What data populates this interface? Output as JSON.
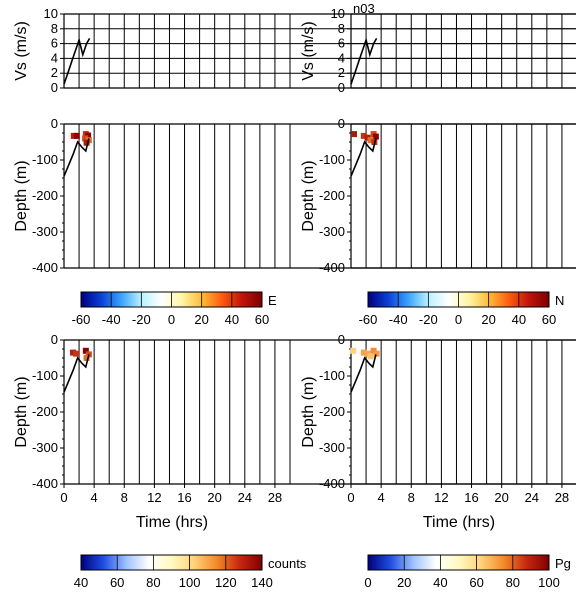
{
  "chart_data": [
    {
      "type": "line",
      "panel": "vs-left",
      "ylabel": "Vs (m/s)",
      "ylim": [
        0,
        10
      ],
      "yticks": [
        0,
        2,
        4,
        6,
        8,
        10
      ],
      "xlim": [
        0,
        30
      ],
      "grid": true,
      "series": [
        {
          "x": [
            0,
            0.5,
            1,
            1.5,
            2,
            2.5,
            3,
            3.4
          ],
          "y": [
            0.5,
            2,
            3.5,
            5,
            6.5,
            4.5,
            6,
            6.7
          ]
        }
      ]
    },
    {
      "type": "line",
      "panel": "vs-right",
      "title": "n03",
      "ylabel": "Vs (m/s)",
      "ylim": [
        0,
        10
      ],
      "yticks": [
        0,
        2,
        4,
        6,
        8,
        10
      ],
      "xlim": [
        0,
        30
      ],
      "grid": true,
      "series": [
        {
          "x": [
            0,
            0.5,
            1,
            1.5,
            2,
            2.5,
            3,
            3.4
          ],
          "y": [
            0.5,
            2,
            3.5,
            5,
            6.5,
            4.5,
            6,
            6.7
          ]
        }
      ]
    },
    {
      "type": "scatter",
      "panel": "E",
      "ylabel": "Depth (m)",
      "ylim": [
        -400,
        0
      ],
      "yticks": [
        0,
        -100,
        -200,
        -300,
        -400
      ],
      "xlim": [
        0,
        30
      ],
      "colorbar": {
        "label": "E",
        "ticks": [
          -60,
          -40,
          -20,
          0,
          20,
          40,
          60
        ]
      },
      "points": [
        {
          "x": 1.3,
          "y": -33,
          "color": "#b41e0e"
        },
        {
          "x": 1.7,
          "y": -33,
          "color": "#8b0000"
        },
        {
          "x": 2.9,
          "y": -28,
          "color": "#c83214"
        },
        {
          "x": 3.2,
          "y": -32,
          "color": "#8b0000"
        },
        {
          "x": 2.8,
          "y": -40,
          "color": "#d04a1a"
        },
        {
          "x": 3.3,
          "y": -45,
          "color": "#e07025"
        },
        {
          "x": 3.0,
          "y": -52,
          "color": "#a0200c"
        }
      ],
      "series": [
        {
          "x": [
            0,
            0.6,
            1.2,
            1.8,
            2.4,
            2.9,
            3.3
          ],
          "y": [
            -145,
            -115,
            -85,
            -50,
            -65,
            -75,
            -40
          ]
        }
      ]
    },
    {
      "type": "scatter",
      "panel": "N",
      "ylabel": "Depth (m)",
      "ylim": [
        -400,
        0
      ],
      "yticks": [
        0,
        -100,
        -200,
        -300,
        -400
      ],
      "xlim": [
        0,
        30
      ],
      "colorbar": {
        "label": "N",
        "ticks": [
          -60,
          -40,
          -20,
          0,
          20,
          40,
          60
        ]
      },
      "points": [
        {
          "x": 0.4,
          "y": -28,
          "color": "#a0200c"
        },
        {
          "x": 1.7,
          "y": -33,
          "color": "#c83214"
        },
        {
          "x": 2.2,
          "y": -38,
          "color": "#b41e0e"
        },
        {
          "x": 3.0,
          "y": -28,
          "color": "#d04a1a"
        },
        {
          "x": 3.3,
          "y": -35,
          "color": "#8b0000"
        },
        {
          "x": 2.6,
          "y": -45,
          "color": "#e07025"
        },
        {
          "x": 3.1,
          "y": -50,
          "color": "#c83214"
        }
      ],
      "series": [
        {
          "x": [
            0,
            0.6,
            1.2,
            1.8,
            2.4,
            2.9,
            3.3
          ],
          "y": [
            -145,
            -115,
            -85,
            -50,
            -65,
            -75,
            -40
          ]
        }
      ]
    },
    {
      "type": "scatter",
      "panel": "counts",
      "ylabel": "Depth (m)",
      "xlabel": "Time (hrs)",
      "ylim": [
        -400,
        0
      ],
      "yticks": [
        0,
        -100,
        -200,
        -300,
        -400
      ],
      "xlim": [
        0,
        30
      ],
      "xticks": [
        0,
        4,
        8,
        12,
        16,
        20,
        24,
        28
      ],
      "colorbar": {
        "label": "counts",
        "ticks": [
          40,
          60,
          80,
          100,
          120,
          140
        ]
      },
      "points": [
        {
          "x": 1.2,
          "y": -35,
          "color": "#b41e0e"
        },
        {
          "x": 1.6,
          "y": -38,
          "color": "#c83214"
        },
        {
          "x": 2.9,
          "y": -30,
          "color": "#8b0000"
        },
        {
          "x": 3.3,
          "y": -40,
          "color": "#d04a1a"
        },
        {
          "x": 3.0,
          "y": -50,
          "color": "#e07025"
        }
      ],
      "series": [
        {
          "x": [
            0,
            0.6,
            1.2,
            1.8,
            2.4,
            2.9,
            3.3
          ],
          "y": [
            -145,
            -115,
            -85,
            -50,
            -65,
            -75,
            -40
          ]
        }
      ]
    },
    {
      "type": "scatter",
      "panel": "Pg",
      "ylabel": "Depth (m)",
      "xlabel": "Time (hrs)",
      "ylim": [
        -400,
        0
      ],
      "yticks": [
        0,
        -100,
        -200,
        -300,
        -400
      ],
      "xlim": [
        0,
        30
      ],
      "xticks": [
        0,
        4,
        8,
        12,
        16,
        20,
        24,
        28
      ],
      "colorbar": {
        "label": "Pg",
        "ticks": [
          0,
          20,
          40,
          60,
          80,
          100
        ]
      },
      "points": [
        {
          "x": 0.3,
          "y": -30,
          "color": "#ffd27f"
        },
        {
          "x": 1.7,
          "y": -35,
          "color": "#f7a14a"
        },
        {
          "x": 2.2,
          "y": -38,
          "color": "#f5a650"
        },
        {
          "x": 3.0,
          "y": -30,
          "color": "#ee8a3a"
        },
        {
          "x": 3.4,
          "y": -38,
          "color": "#f29a45"
        },
        {
          "x": 2.6,
          "y": -45,
          "color": "#ffc070"
        }
      ],
      "series": [
        {
          "x": [
            0,
            0.6,
            1.2,
            1.8,
            2.4,
            2.9,
            3.3
          ],
          "y": [
            -145,
            -115,
            -85,
            -50,
            -65,
            -75,
            -40
          ]
        }
      ]
    }
  ],
  "colormaps": {
    "diverging": [
      "#00007f",
      "#0a3fd8",
      "#3aa3ff",
      "#b9f2ff",
      "#ffffff",
      "#fff6a6",
      "#ffbc3a",
      "#ff5d10",
      "#c0140c",
      "#7f0000"
    ],
    "sequential": [
      "#00007f",
      "#1f4fe0",
      "#9fc2ff",
      "#ffffff",
      "#fffac0",
      "#ffd27a",
      "#f28a2a",
      "#c8280e",
      "#7f0000"
    ]
  }
}
